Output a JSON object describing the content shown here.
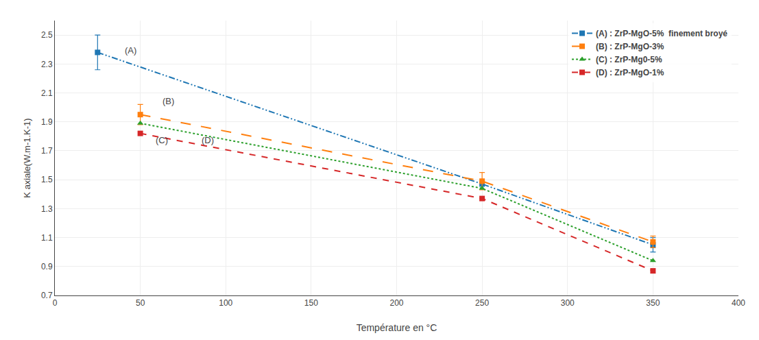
{
  "chart_data": {
    "type": "line",
    "xlabel": "Température en °C",
    "ylabel": "K axiale(W.m-1.K-1)",
    "xlim": [
      0,
      400
    ],
    "ylim": [
      0.7,
      2.6
    ],
    "xticks": [
      0,
      50,
      100,
      150,
      200,
      250,
      300,
      350,
      400
    ],
    "yticks": [
      0.7,
      0.9,
      1.1,
      1.3,
      1.5,
      1.7,
      1.9,
      2.1,
      2.3,
      2.5
    ],
    "legend": "upper right",
    "series": [
      {
        "name": "(A) : ZrP-MgO-5%  finement broyé",
        "x": [
          25,
          250,
          350
        ],
        "values": [
          2.38,
          1.47,
          1.05
        ],
        "yerr": [
          0.12,
          0.0,
          0.05
        ],
        "line_style": "dashdotdot",
        "marker": "square"
      },
      {
        "name": "(B) : ZrP-MgO-3%",
        "x": [
          50,
          250,
          350
        ],
        "values": [
          1.95,
          1.49,
          1.07
        ],
        "yerr": [
          0.07,
          0.06,
          0.04
        ],
        "line_style": "longdash",
        "marker": "square"
      },
      {
        "name": "(C) : ZrP-Mg0-5%",
        "x": [
          50,
          250,
          350
        ],
        "values": [
          1.89,
          1.44,
          0.94
        ],
        "yerr": [
          0.0,
          0.0,
          0.0
        ],
        "line_style": "dot",
        "marker": "triangle-up"
      },
      {
        "name": "(D) : ZrP-MgO-1%",
        "x": [
          50,
          250,
          350
        ],
        "values": [
          1.82,
          1.37,
          0.87
        ],
        "yerr": [
          0.0,
          0.0,
          0.0
        ],
        "line_style": "dash",
        "marker": "square"
      }
    ],
    "annotations": [
      {
        "text": "(A)",
        "x": 40,
        "y": 2.35
      },
      {
        "text": "(B)",
        "x": 62,
        "y": 2.0
      },
      {
        "text": "(C)",
        "x": 58,
        "y": 1.73
      },
      {
        "text": "(D)",
        "x": 85,
        "y": 1.73
      }
    ]
  }
}
